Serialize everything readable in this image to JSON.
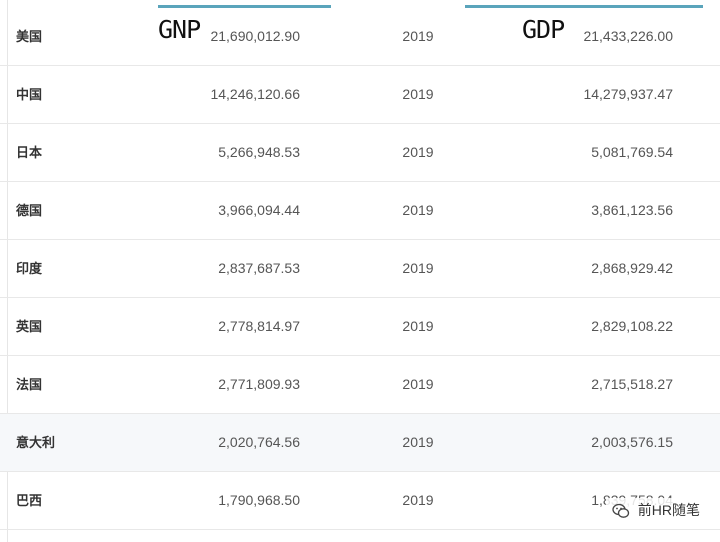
{
  "headers": {
    "gnp_label": "GNP",
    "gdp_label": "GDP"
  },
  "rows": [
    {
      "country": "美国",
      "gnp": "21,690,012.90",
      "year": "2019",
      "gdp": "21,433,226.00"
    },
    {
      "country": "中国",
      "gnp": "14,246,120.66",
      "year": "2019",
      "gdp": "14,279,937.47"
    },
    {
      "country": "日本",
      "gnp": "5,266,948.53",
      "year": "2019",
      "gdp": "5,081,769.54"
    },
    {
      "country": "德国",
      "gnp": "3,966,094.44",
      "year": "2019",
      "gdp": "3,861,123.56"
    },
    {
      "country": "印度",
      "gnp": "2,837,687.53",
      "year": "2019",
      "gdp": "2,868,929.42"
    },
    {
      "country": "英国",
      "gnp": "2,778,814.97",
      "year": "2019",
      "gdp": "2,829,108.22"
    },
    {
      "country": "法国",
      "gnp": "2,771,809.93",
      "year": "2019",
      "gdp": "2,715,518.27"
    },
    {
      "country": "意大利",
      "gnp": "2,020,764.56",
      "year": "2019",
      "gdp": "2,003,576.15"
    },
    {
      "country": "巴西",
      "gnp": "1,790,968.50",
      "year": "2019",
      "gdp": "1,839,758.04"
    }
  ],
  "watermark": {
    "text": "前HR随笔",
    "icon": "wechat-icon"
  },
  "colors": {
    "header_line": "#5aa4bb",
    "row_border": "#e8e8e8"
  }
}
